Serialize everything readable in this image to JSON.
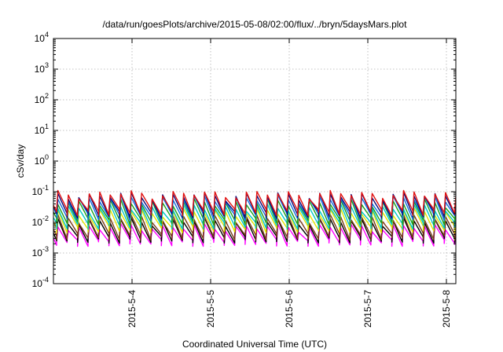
{
  "chart_data": {
    "type": "line",
    "title": "/data/run/goesPlots/archive/2015-05-08/02:00/flux/../bryn/5daysMars.plot",
    "xlabel": "Coordinated Universal Time (UTC)",
    "ylabel": "cSv/day",
    "yscale": "log",
    "ylim": [
      0.0001,
      10000
    ],
    "y_ticks": [
      {
        "value": 0.0001,
        "base": "10",
        "exp": "-4"
      },
      {
        "value": 0.001,
        "base": "10",
        "exp": "-3"
      },
      {
        "value": 0.01,
        "base": "10",
        "exp": "-2"
      },
      {
        "value": 0.1,
        "base": "10",
        "exp": "-1"
      },
      {
        "value": 1,
        "base": "10",
        "exp": "0"
      },
      {
        "value": 10,
        "base": "10",
        "exp": "1"
      },
      {
        "value": 100,
        "base": "10",
        "exp": "2"
      },
      {
        "value": 1000,
        "base": "10",
        "exp": "3"
      },
      {
        "value": 10000,
        "base": "10",
        "exp": "4"
      }
    ],
    "xlim": [
      3.0,
      8.12
    ],
    "x_ticks": [
      {
        "value": 4,
        "label": "2015-5-4"
      },
      {
        "value": 5,
        "label": "2015-5-5"
      },
      {
        "value": 6,
        "label": "2015-5-6"
      },
      {
        "value": 7,
        "label": "2015-5-7"
      },
      {
        "value": 8,
        "label": "2015-5-8"
      }
    ],
    "grid": true,
    "legend": "none",
    "pattern": {
      "period_days": 0.1333,
      "peak_values": [
        0.08,
        0.06,
        0.05,
        0.035,
        0.025,
        0.013,
        0.008,
        0.006
      ],
      "trough_values": [
        0.02,
        0.015,
        0.012,
        0.008,
        0.006,
        0.0035,
        0.0025,
        0.0022
      ]
    },
    "series": [
      {
        "color": "#e01010",
        "values": [
          0.085,
          0.022
        ]
      },
      {
        "color": "#0a0a7a",
        "values": [
          0.075,
          0.018
        ]
      },
      {
        "color": "#1070e0",
        "values": [
          0.06,
          0.015
        ]
      },
      {
        "color": "#1aa01a",
        "values": [
          0.045,
          0.011
        ]
      },
      {
        "color": "#00c8c8",
        "values": [
          0.03,
          0.008
        ]
      },
      {
        "color": "#e4e400",
        "values": [
          0.022,
          0.006
        ]
      },
      {
        "color": "#7a3a18",
        "values": [
          0.014,
          0.0035
        ]
      },
      {
        "color": "#000000",
        "values": [
          0.011,
          0.0028
        ]
      },
      {
        "color": "#ff00ff",
        "values": [
          0.007,
          0.0022
        ]
      }
    ]
  }
}
